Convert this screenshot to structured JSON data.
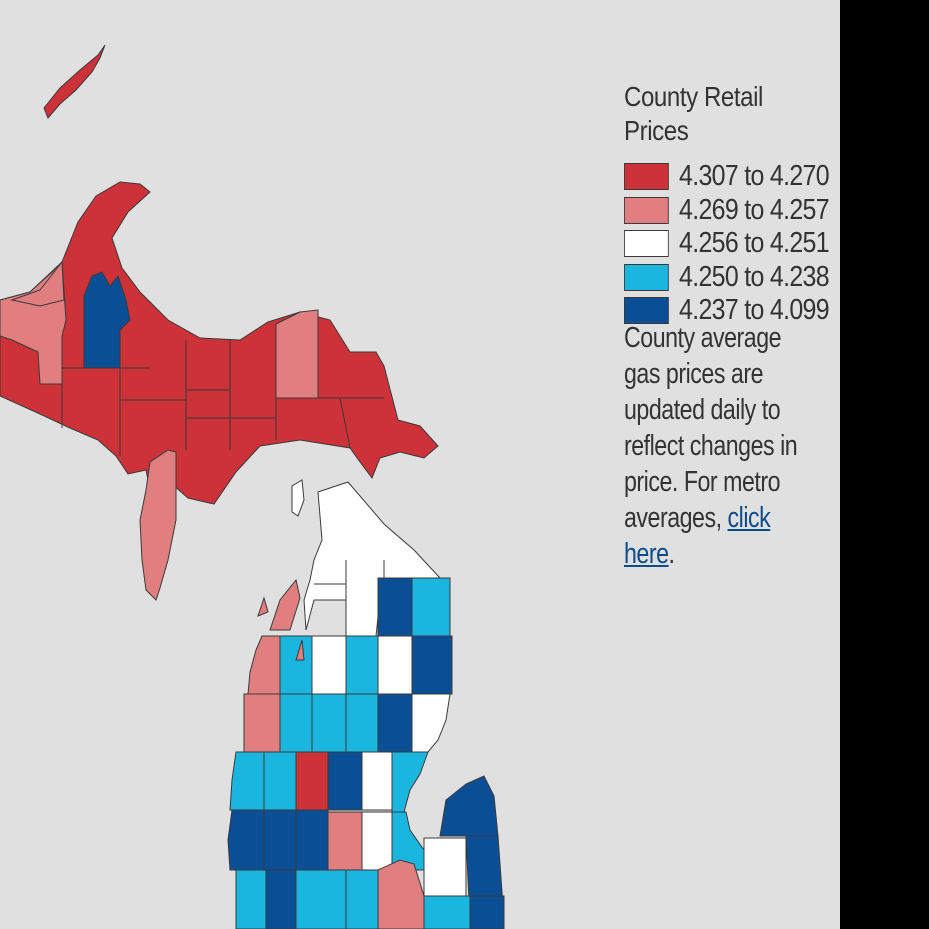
{
  "colors": {
    "background": "#e0e0e0",
    "high": "#cc3238",
    "upper_mid": "#e07e80",
    "mid": "#ffffff",
    "lower_mid": "#1bb6e0",
    "low": "#0a4f96",
    "link": "#0a4c8a"
  },
  "legend": {
    "title": "County Retail Prices",
    "items": [
      {
        "label": "4.307 to 4.270",
        "color": "#cc3238",
        "icon": "swatch-red"
      },
      {
        "label": "4.269 to 4.257",
        "color": "#e07e80",
        "icon": "swatch-pink"
      },
      {
        "label": "4.256 to 4.251",
        "color": "#ffffff",
        "icon": "swatch-white"
      },
      {
        "label": "4.250 to 4.238",
        "color": "#1bb6e0",
        "icon": "swatch-light-blue"
      },
      {
        "label": "4.237 to 4.099",
        "color": "#0a4f96",
        "icon": "swatch-dark-blue"
      }
    ]
  },
  "note": {
    "text": "County average gas prices are updated daily to reflect changes in price. For metro averages, ",
    "link_text": "click here",
    "suffix": "."
  }
}
